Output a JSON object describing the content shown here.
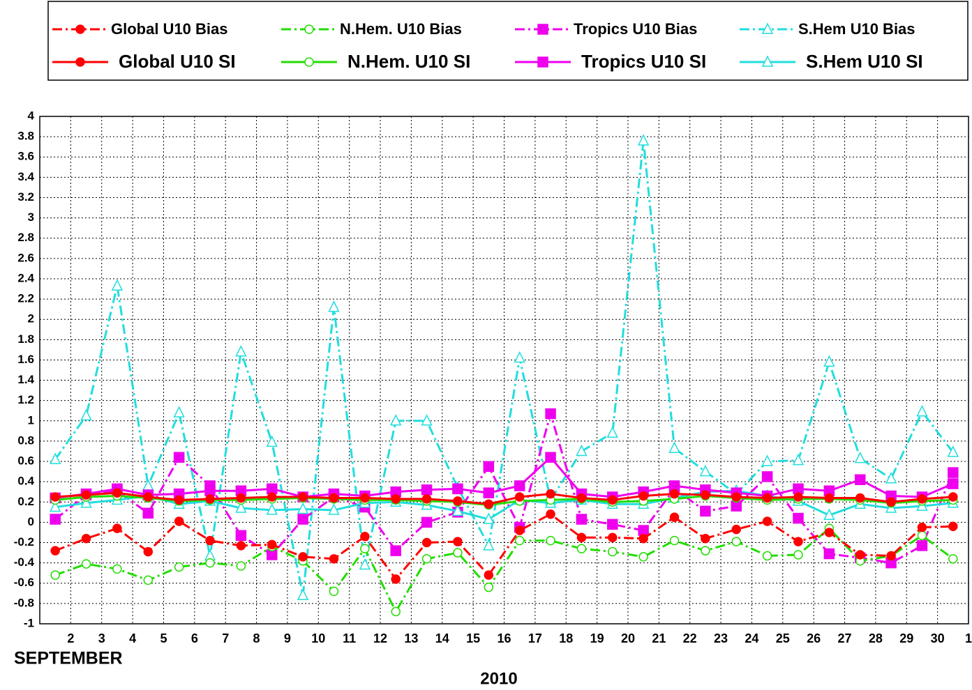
{
  "chart_data": {
    "type": "line",
    "x_label": "SEPTEMBER",
    "x_sublabel": "2010",
    "xlim": [
      1,
      31
    ],
    "xticks": [
      2,
      3,
      4,
      5,
      6,
      7,
      8,
      9,
      10,
      11,
      12,
      13,
      14,
      15,
      16,
      17,
      18,
      19,
      20,
      21,
      22,
      23,
      24,
      25,
      26,
      27,
      28,
      29,
      30,
      {
        "value": 31,
        "label": "1"
      }
    ],
    "xticks_highlight": [
      5,
      12,
      19,
      26
    ],
    "xticks_highlight_color": "#ff0000",
    "ylim": [
      -1,
      4
    ],
    "yticks": [
      -1,
      -0.8,
      -0.6,
      -0.4,
      -0.2,
      0,
      0.2,
      0.4,
      0.6,
      0.8,
      1,
      1.2,
      1.4,
      1.6,
      1.8,
      2,
      2.2,
      2.4,
      2.6,
      2.8,
      3,
      3.2,
      3.4,
      3.6,
      3.8,
      4
    ],
    "grid": true,
    "x": [
      1.5,
      2.5,
      3.5,
      4.5,
      5.5,
      6.5,
      7.5,
      8.5,
      9.5,
      10.5,
      11.5,
      12.5,
      13.5,
      14.5,
      15.5,
      16.5,
      17.5,
      18.5,
      19.5,
      20.5,
      21.5,
      22.5,
      23.5,
      24.5,
      25.5,
      26.5,
      27.5,
      28.5,
      29.5,
      30.5
    ],
    "series": [
      {
        "name": "Global U10 Bias",
        "color": "#ff0000",
        "dash": "dashdot",
        "marker": "circle-filled",
        "values": [
          -0.28,
          -0.16,
          -0.06,
          -0.29,
          0.01,
          -0.18,
          -0.23,
          -0.22,
          -0.34,
          -0.36,
          -0.14,
          -0.56,
          -0.2,
          -0.19,
          -0.52,
          -0.08,
          0.08,
          -0.15,
          -0.15,
          -0.16,
          0.05,
          -0.16,
          -0.07,
          0.01,
          -0.19,
          -0.1,
          -0.32,
          -0.33,
          -0.05,
          -0.04
        ]
      },
      {
        "name": "N.Hem. U10 Bias",
        "color": "#22dd00",
        "dash": "dashdot",
        "marker": "circle-open",
        "values": [
          -0.52,
          -0.41,
          -0.46,
          -0.57,
          -0.44,
          -0.4,
          -0.43,
          -0.24,
          -0.38,
          -0.68,
          -0.26,
          -0.88,
          -0.36,
          -0.3,
          -0.64,
          -0.18,
          -0.18,
          -0.26,
          -0.29,
          -0.34,
          -0.18,
          -0.28,
          -0.19,
          -0.33,
          -0.32,
          -0.06,
          -0.38,
          -0.33,
          -0.13,
          -0.36
        ]
      },
      {
        "name": "Tropics U10 Bias",
        "color": "#ee00ee",
        "dash": "dashdot",
        "marker": "square-filled",
        "values": [
          0.03,
          0.27,
          0.31,
          0.09,
          0.64,
          0.36,
          -0.13,
          -0.32,
          0.03,
          0.25,
          0.15,
          -0.28,
          0.0,
          0.1,
          0.55,
          -0.05,
          1.07,
          0.03,
          -0.02,
          -0.08,
          0.33,
          0.11,
          0.16,
          0.45,
          0.04,
          -0.31,
          -0.35,
          -0.4,
          -0.23,
          0.49
        ]
      },
      {
        "name": "S.Hem U10 Bias",
        "color": "#22dddd",
        "dash": "dashdot",
        "marker": "triangle-open",
        "values": [
          0.62,
          1.05,
          2.33,
          0.36,
          1.08,
          -0.33,
          1.68,
          0.79,
          -0.72,
          2.12,
          -0.42,
          1.0,
          1.0,
          0.34,
          -0.23,
          1.62,
          0.22,
          0.7,
          0.88,
          3.76,
          0.73,
          0.5,
          0.28,
          0.6,
          0.61,
          1.58,
          0.63,
          0.43,
          1.09,
          0.69
        ]
      },
      {
        "name": "Global U10 SI",
        "color": "#ff0000",
        "dash": "solid",
        "marker": "circle-filled",
        "values": [
          0.25,
          0.27,
          0.29,
          0.25,
          0.22,
          0.23,
          0.24,
          0.25,
          0.25,
          0.24,
          0.24,
          0.23,
          0.23,
          0.21,
          0.18,
          0.25,
          0.28,
          0.24,
          0.22,
          0.26,
          0.28,
          0.27,
          0.25,
          0.24,
          0.25,
          0.24,
          0.24,
          0.2,
          0.23,
          0.25
        ]
      },
      {
        "name": "N.Hem. U10 SI",
        "color": "#22dd00",
        "dash": "solid",
        "marker": "circle-open",
        "values": [
          0.22,
          0.25,
          0.26,
          0.24,
          0.21,
          0.22,
          0.22,
          0.23,
          0.24,
          0.23,
          0.22,
          0.22,
          0.21,
          0.2,
          0.17,
          0.21,
          0.22,
          0.23,
          0.2,
          0.21,
          0.23,
          0.26,
          0.24,
          0.22,
          0.23,
          0.23,
          0.22,
          0.19,
          0.21,
          0.22
        ]
      },
      {
        "name": "Tropics U10 SI",
        "color": "#ee00ee",
        "dash": "solid",
        "marker": "square-filled",
        "values": [
          0.24,
          0.28,
          0.33,
          0.27,
          0.28,
          0.31,
          0.31,
          0.33,
          0.25,
          0.28,
          0.26,
          0.3,
          0.32,
          0.33,
          0.29,
          0.36,
          0.64,
          0.28,
          0.25,
          0.3,
          0.36,
          0.32,
          0.29,
          0.26,
          0.33,
          0.31,
          0.42,
          0.26,
          0.25,
          0.38
        ]
      },
      {
        "name": "S.Hem U10  SI",
        "color": "#22dddd",
        "dash": "solid",
        "marker": "triangle-open",
        "values": [
          0.15,
          0.19,
          0.22,
          0.26,
          0.18,
          0.21,
          0.14,
          0.12,
          0.13,
          0.12,
          0.19,
          0.2,
          0.17,
          0.11,
          0.03,
          0.22,
          0.19,
          0.22,
          0.18,
          0.18,
          0.24,
          0.3,
          0.31,
          0.26,
          0.21,
          0.07,
          0.18,
          0.14,
          0.16,
          0.19
        ]
      }
    ]
  }
}
